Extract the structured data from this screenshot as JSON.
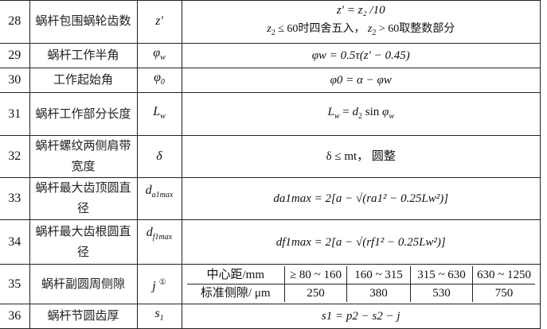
{
  "rows": [
    {
      "no": "28",
      "name": "蜗杆包围蜗轮齿数",
      "symbol": "z′",
      "formula_line1": "z′ = z₂ /10",
      "formula_line2": "z₂ ≤ 60时四舍五入， z₂ > 60取整数部分"
    },
    {
      "no": "29",
      "name": "蜗杆工作半角",
      "symbol": "φw",
      "formula": "φw = 0.5τ(z′ − 0.45)"
    },
    {
      "no": "30",
      "name": "工作起始角",
      "symbol": "φ0",
      "formula": "φ0 = α − φw"
    },
    {
      "no": "31",
      "name": "蜗杆工作部分长度",
      "symbol": "Lw",
      "formula": "Lw = d2 sin φw"
    },
    {
      "no": "32",
      "name": "蜗杆螺纹两侧肩带宽度",
      "symbol": "δ",
      "formula": "δ ≤ mt， 圆整"
    },
    {
      "no": "33",
      "name": "蜗杆最大齿顶圆直径",
      "symbol": "da1max",
      "formula": "da1max = 2[a − √(ra1² − 0.25Lw²)]"
    },
    {
      "no": "34",
      "name": "蜗杆最大齿根圆直径",
      "symbol": "df1max",
      "formula": "df1max = 2[a − √(rf1² − 0.25Lw²)]"
    },
    {
      "no": "35",
      "name": "蜗杆副圆周侧隙",
      "symbol": "j ①",
      "subtable": {
        "header_label": "中心距/mm",
        "ranges": [
          "≥ 80 ~ 160",
          "160 ~ 315",
          "315 ~ 630",
          "630 ~ 1250"
        ],
        "value_label": "标准侧隙/ μm",
        "values": [
          "250",
          "380",
          "530",
          "750"
        ]
      }
    },
    {
      "no": "36",
      "name": "蜗杆节圆齿厚",
      "symbol": "s1",
      "formula": "s1 = p2 − s2 − j"
    }
  ]
}
